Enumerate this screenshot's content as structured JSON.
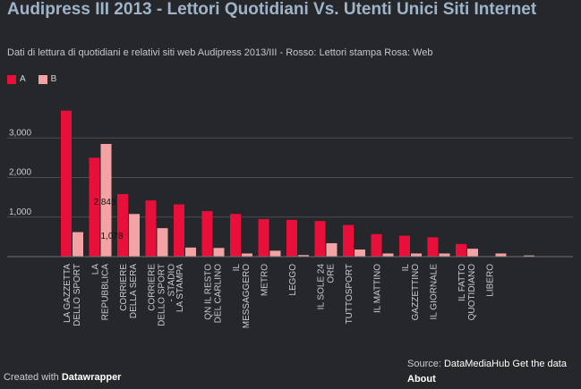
{
  "title": "Audipress III 2013 - Lettori Quotidiani Vs. Utenti Unici Siti Internet",
  "subtitle": "Dati di lettura di quotidiani e relativi siti web Audipress 2013/III - Rosso: Lettori stampa Rosa: Web",
  "legend": [
    {
      "label": "A",
      "color": "#e8103a"
    },
    {
      "label": "B",
      "color": "#f3a3a3"
    }
  ],
  "footer": {
    "created_prefix": "Created with",
    "created_brand": "Datawrapper",
    "source_prefix": "Source:",
    "source_name": "DataMediaHub",
    "get_data": "Get the data",
    "about": "About"
  },
  "chart_data": {
    "type": "bar",
    "categories": [
      "LA GAZZETTA DELLO SPORT",
      "LA REPUBBLICA",
      "CORRIERE DELLA SERA",
      "CORRIERE DELLO SPORT - STADIO",
      "LA STAMPA",
      "QN IL RESTO DEL CARLINO",
      "IL MESSAGGERO",
      "METRO",
      "LEGGO",
      "IL SOLE 24 ORE",
      "TUTTOSPORT",
      "IL MATTINO",
      "IL GAZZETTINO",
      "IL GIORNALE",
      "IL FATTO QUOTIDIANO",
      "LIBERO",
      ""
    ],
    "series": [
      {
        "name": "A",
        "color": "#e8103a",
        "values": [
          3690,
          2500,
          1580,
          1420,
          1320,
          1150,
          1080,
          950,
          930,
          900,
          800,
          570,
          530,
          490,
          320,
          0,
          0
        ]
      },
      {
        "name": "B",
        "color": "#f3a3a3",
        "values": [
          620,
          2848,
          1078,
          720,
          230,
          220,
          80,
          150,
          40,
          340,
          180,
          80,
          80,
          80,
          200,
          80,
          30
        ]
      }
    ],
    "value_labels": [
      {
        "text": "2,848"
      },
      {
        "text": "1,078"
      }
    ],
    "yticks": [
      1000,
      2000,
      3000
    ],
    "ytick_labels": [
      "1,000",
      "2,000",
      "3,000"
    ],
    "ylim": [
      0,
      4000
    ],
    "grid": true,
    "legend_position": "top-left"
  }
}
